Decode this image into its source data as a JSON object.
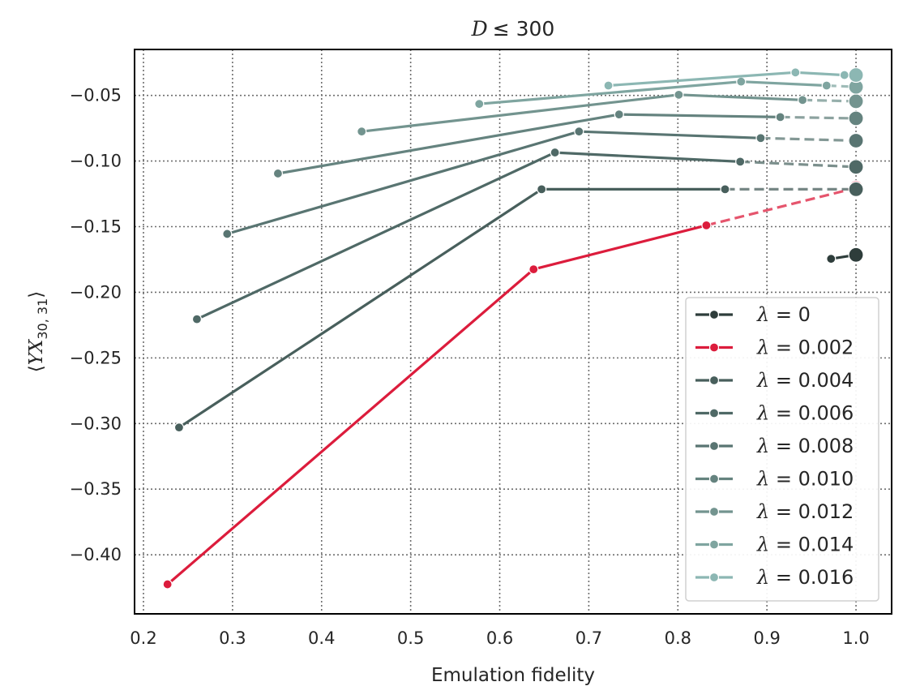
{
  "chart_data": {
    "type": "line",
    "title": "D ≤ 300",
    "title_parts": {
      "var": "D",
      "rel": "≤ 300"
    },
    "xlabel": "Emulation fidelity",
    "ylabel": "⟨YX30, 31⟩",
    "ylabel_parts": {
      "open": "⟨",
      "var": "YX",
      "sub": "30, 31",
      "close": "⟩"
    },
    "xlim": [
      0.19,
      1.04
    ],
    "ylim": [
      -0.445,
      -0.015
    ],
    "xticks": [
      0.2,
      0.3,
      0.4,
      0.5,
      0.6,
      0.7,
      0.8,
      0.9,
      1.0
    ],
    "xtick_labels": [
      "0.2",
      "0.3",
      "0.4",
      "0.5",
      "0.6",
      "0.7",
      "0.8",
      "0.9",
      "1.0"
    ],
    "yticks": [
      -0.05,
      -0.1,
      -0.15,
      -0.2,
      -0.25,
      -0.3,
      -0.35,
      -0.4
    ],
    "ytick_labels": [
      "−0.05",
      "−0.10",
      "−0.15",
      "−0.20",
      "−0.25",
      "−0.30",
      "−0.35",
      "−0.40"
    ],
    "grid": true,
    "legend_position": "lower-right",
    "series": [
      {
        "lambda": "0",
        "color": "#2e3d3b",
        "points": [
          [
            0.972,
            -0.1745
          ]
        ],
        "endpoint": [
          1.0,
          -0.1715
        ]
      },
      {
        "lambda": "0.002",
        "color": "#dc1c3c",
        "points": [
          [
            0.227,
            -0.4225
          ],
          [
            0.638,
            -0.1825
          ],
          [
            0.832,
            -0.149
          ]
        ],
        "endpoint": [
          1.0,
          -0.1205
        ]
      },
      {
        "lambda": "0.004",
        "color": "#485f5c",
        "points": [
          [
            0.24,
            -0.303
          ],
          [
            0.647,
            -0.1215
          ],
          [
            0.853,
            -0.1215
          ]
        ],
        "endpoint": [
          1.0,
          -0.1215
        ]
      },
      {
        "lambda": "0.006",
        "color": "#4f6966",
        "points": [
          [
            0.26,
            -0.2205
          ],
          [
            0.662,
            -0.0935
          ],
          [
            0.87,
            -0.1005
          ]
        ],
        "endpoint": [
          1.0,
          -0.1045
        ]
      },
      {
        "lambda": "0.008",
        "color": "#597572",
        "points": [
          [
            0.294,
            -0.1555
          ],
          [
            0.689,
            -0.0775
          ],
          [
            0.893,
            -0.0825
          ]
        ],
        "endpoint": [
          1.0,
          -0.0845
        ]
      },
      {
        "lambda": "0.010",
        "color": "#65837f",
        "points": [
          [
            0.351,
            -0.1095
          ],
          [
            0.734,
            -0.0645
          ],
          [
            0.915,
            -0.0665
          ]
        ],
        "endpoint": [
          1.0,
          -0.0675
        ]
      },
      {
        "lambda": "0.012",
        "color": "#73948f",
        "points": [
          [
            0.445,
            -0.0775
          ],
          [
            0.801,
            -0.0495
          ],
          [
            0.94,
            -0.0535
          ]
        ],
        "endpoint": [
          1.0,
          -0.0545
        ]
      },
      {
        "lambda": "0.014",
        "color": "#7fa5a0",
        "points": [
          [
            0.577,
            -0.0565
          ],
          [
            0.871,
            -0.0395
          ],
          [
            0.967,
            -0.0425
          ]
        ],
        "endpoint": [
          1.0,
          -0.0435
        ]
      },
      {
        "lambda": "0.016",
        "color": "#8cb7b3",
        "points": [
          [
            0.722,
            -0.0425
          ],
          [
            0.932,
            -0.0325
          ],
          [
            0.987,
            -0.0345
          ]
        ],
        "endpoint": [
          1.0,
          -0.0345
        ]
      }
    ]
  }
}
